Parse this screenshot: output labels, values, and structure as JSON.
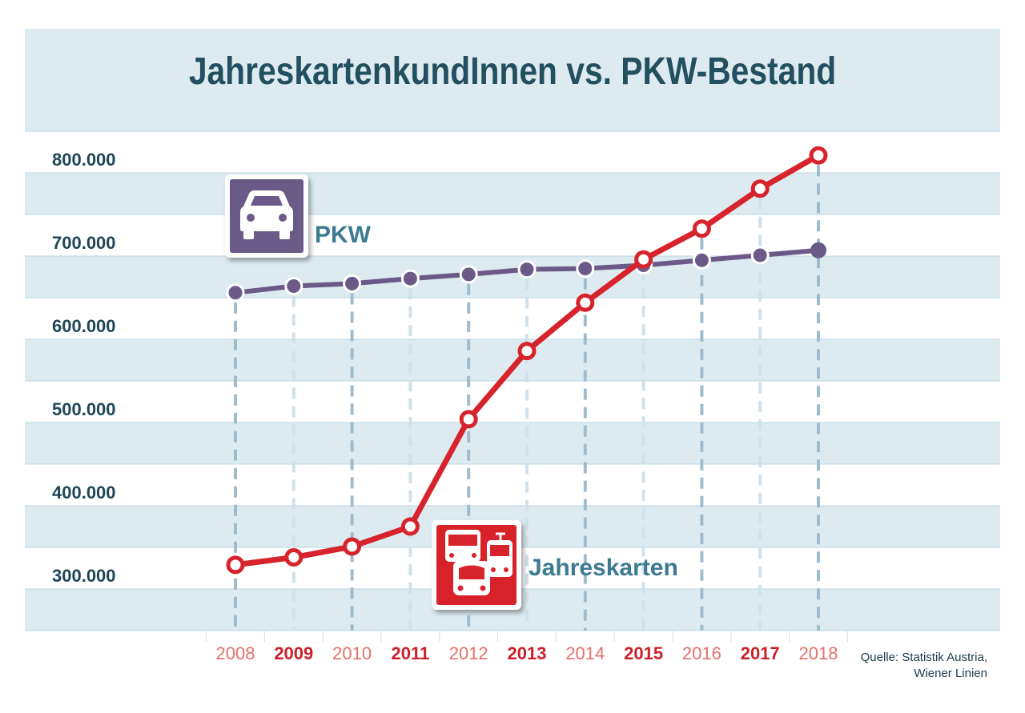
{
  "title": "JahreskartenkundInnen vs. PKW-Bestand",
  "source_lines": [
    "Quelle: Statistik Austria,",
    "Wiener Linien"
  ],
  "colors": {
    "title": "#23505f",
    "band": "#ddebf1",
    "gridline": "#bcd5e0",
    "ytick": "#1e4656",
    "label": "#3d7a91",
    "pkw": "#6b5a87",
    "jahreskarten": "#d7232b",
    "year_light": "#e46f6b",
    "year_dark": "#cc1f2a",
    "dash_dark": "#9fbcce",
    "dash_light": "#cfe1ea",
    "icon_white": "#ffffff"
  },
  "icons": {
    "pkw": "car-icon",
    "jahreskarten": "public-transport-icon"
  },
  "chart_data": {
    "type": "line",
    "title": "JahreskartenkundInnen vs. PKW-Bestand",
    "x": [
      "2008",
      "2009",
      "2010",
      "2011",
      "2012",
      "2013",
      "2014",
      "2015",
      "2016",
      "2017",
      "2018"
    ],
    "y_ticks": [
      "300.000",
      "400.000",
      "500.000",
      "600.000",
      "700.000",
      "800.000"
    ],
    "y_tick_values": [
      300000,
      400000,
      500000,
      600000,
      700000,
      800000
    ],
    "ylim": [
      250000,
      850000
    ],
    "grid": true,
    "series": [
      {
        "name": "PKW",
        "key": "pkw",
        "values": [
          655000,
          663000,
          666000,
          672000,
          677000,
          683000,
          684000,
          688000,
          694000,
          700000,
          706000
        ]
      },
      {
        "name": "Jahreskarten",
        "key": "jahreskarten",
        "values": [
          328000,
          337000,
          350000,
          374000,
          503000,
          585000,
          643000,
          695000,
          732000,
          780000,
          820000
        ]
      }
    ]
  }
}
